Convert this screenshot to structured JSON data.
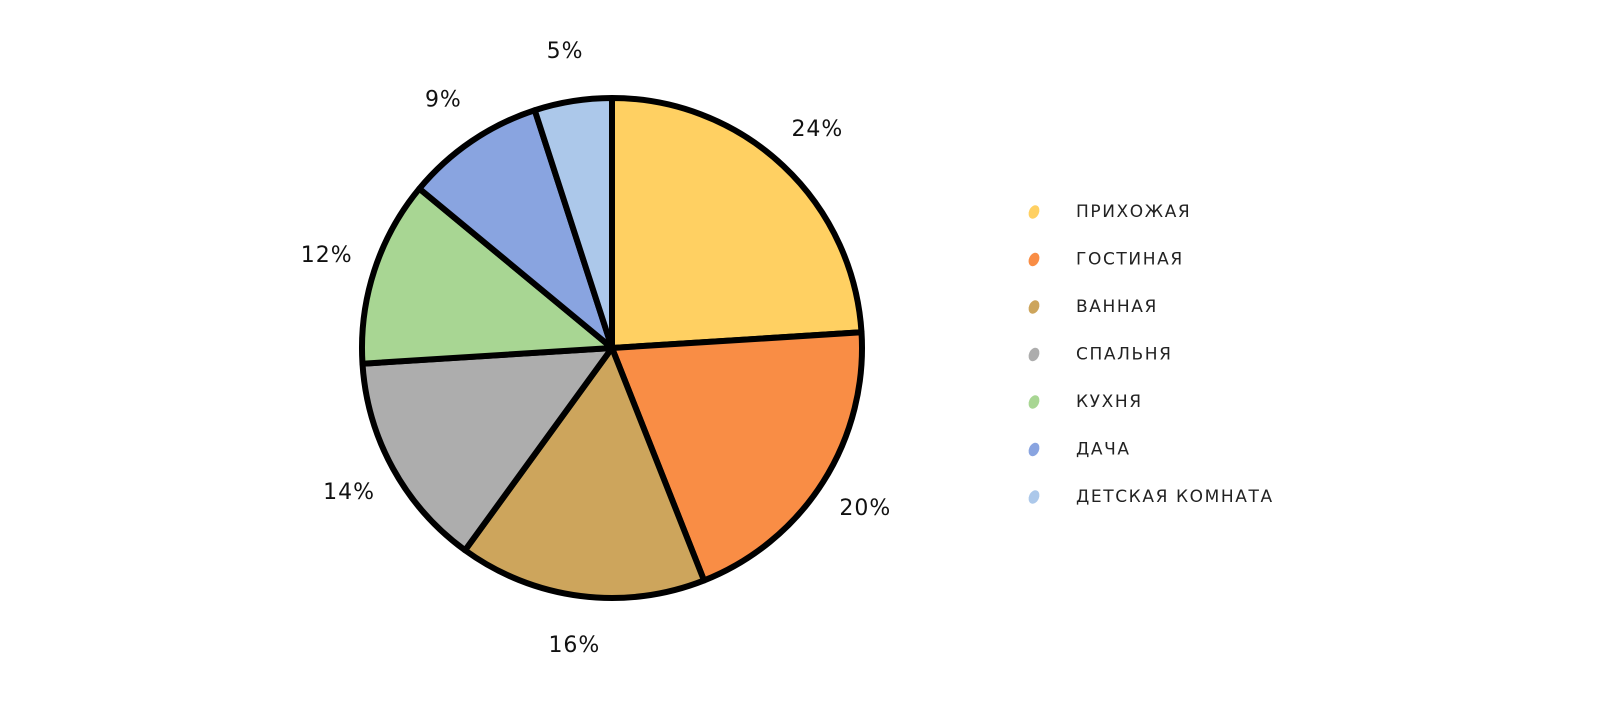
{
  "chart_data": {
    "type": "pie",
    "title": "",
    "start_angle_deg": 0,
    "direction": "clockwise",
    "legend_position": "right",
    "slices": [
      {
        "label": "ПРИХОЖАЯ",
        "value": 24,
        "value_label": "24%",
        "color": "#FFD062"
      },
      {
        "label": "ГОСТИНАЯ",
        "value": 20,
        "value_label": "20%",
        "color": "#F98D45"
      },
      {
        "label": "ВАННАЯ",
        "value": 16,
        "value_label": "16%",
        "color": "#CDA55C"
      },
      {
        "label": "СПАЛЬНЯ",
        "value": 14,
        "value_label": "14%",
        "color": "#ADADAD"
      },
      {
        "label": "КУХНЯ",
        "value": 12,
        "value_label": "12%",
        "color": "#A8D693"
      },
      {
        "label": "ДАЧА",
        "value": 9,
        "value_label": "9%",
        "color": "#89A4E0"
      },
      {
        "label": "ДЕТСКАЯ КОМНАТА",
        "value": 5,
        "value_label": "5%",
        "color": "#ACC8EA"
      }
    ],
    "stroke_color": "#000000"
  }
}
